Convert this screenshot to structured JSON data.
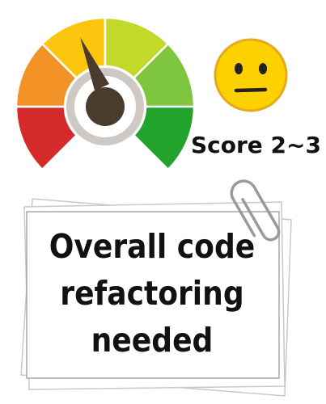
{
  "gauge": {
    "needle_position": "upper-left",
    "segments": [
      {
        "color": "#d42a2a"
      },
      {
        "color": "#f39226"
      },
      {
        "color": "#fcc60e"
      },
      {
        "color": "#c3d92a"
      },
      {
        "color": "#7ec63e"
      },
      {
        "color": "#22a32b"
      }
    ]
  },
  "mood_icon": "neutral-face-icon",
  "score": {
    "label": "Score 2~3"
  },
  "note": {
    "lines": [
      "Overall code",
      "refactoring",
      "needed"
    ]
  }
}
